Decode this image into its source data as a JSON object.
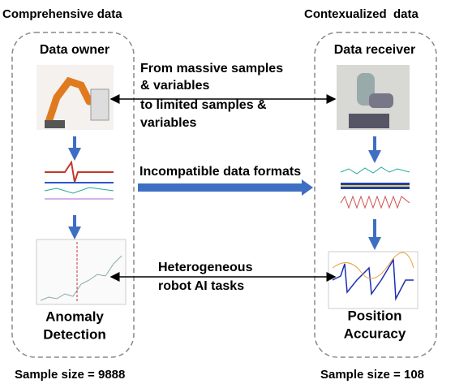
{
  "left": {
    "header": "Comprehensive data",
    "title": "Data owner",
    "task": [
      "Anomaly",
      "Detection"
    ],
    "sample_size": "Sample size = 9888"
  },
  "right": {
    "header": "Contexualized  data",
    "title": "Data receiver",
    "task": [
      "Position",
      "Accuracy"
    ],
    "sample_size": "Sample size = 108"
  },
  "links": [
    {
      "lines": [
        "From massive samples",
        "& variables",
        "to limited samples &",
        "variables"
      ]
    },
    {
      "lines": [
        "Incompatible data formats"
      ]
    },
    {
      "lines": [
        "Heterogeneous",
        "robot AI tasks"
      ]
    }
  ]
}
